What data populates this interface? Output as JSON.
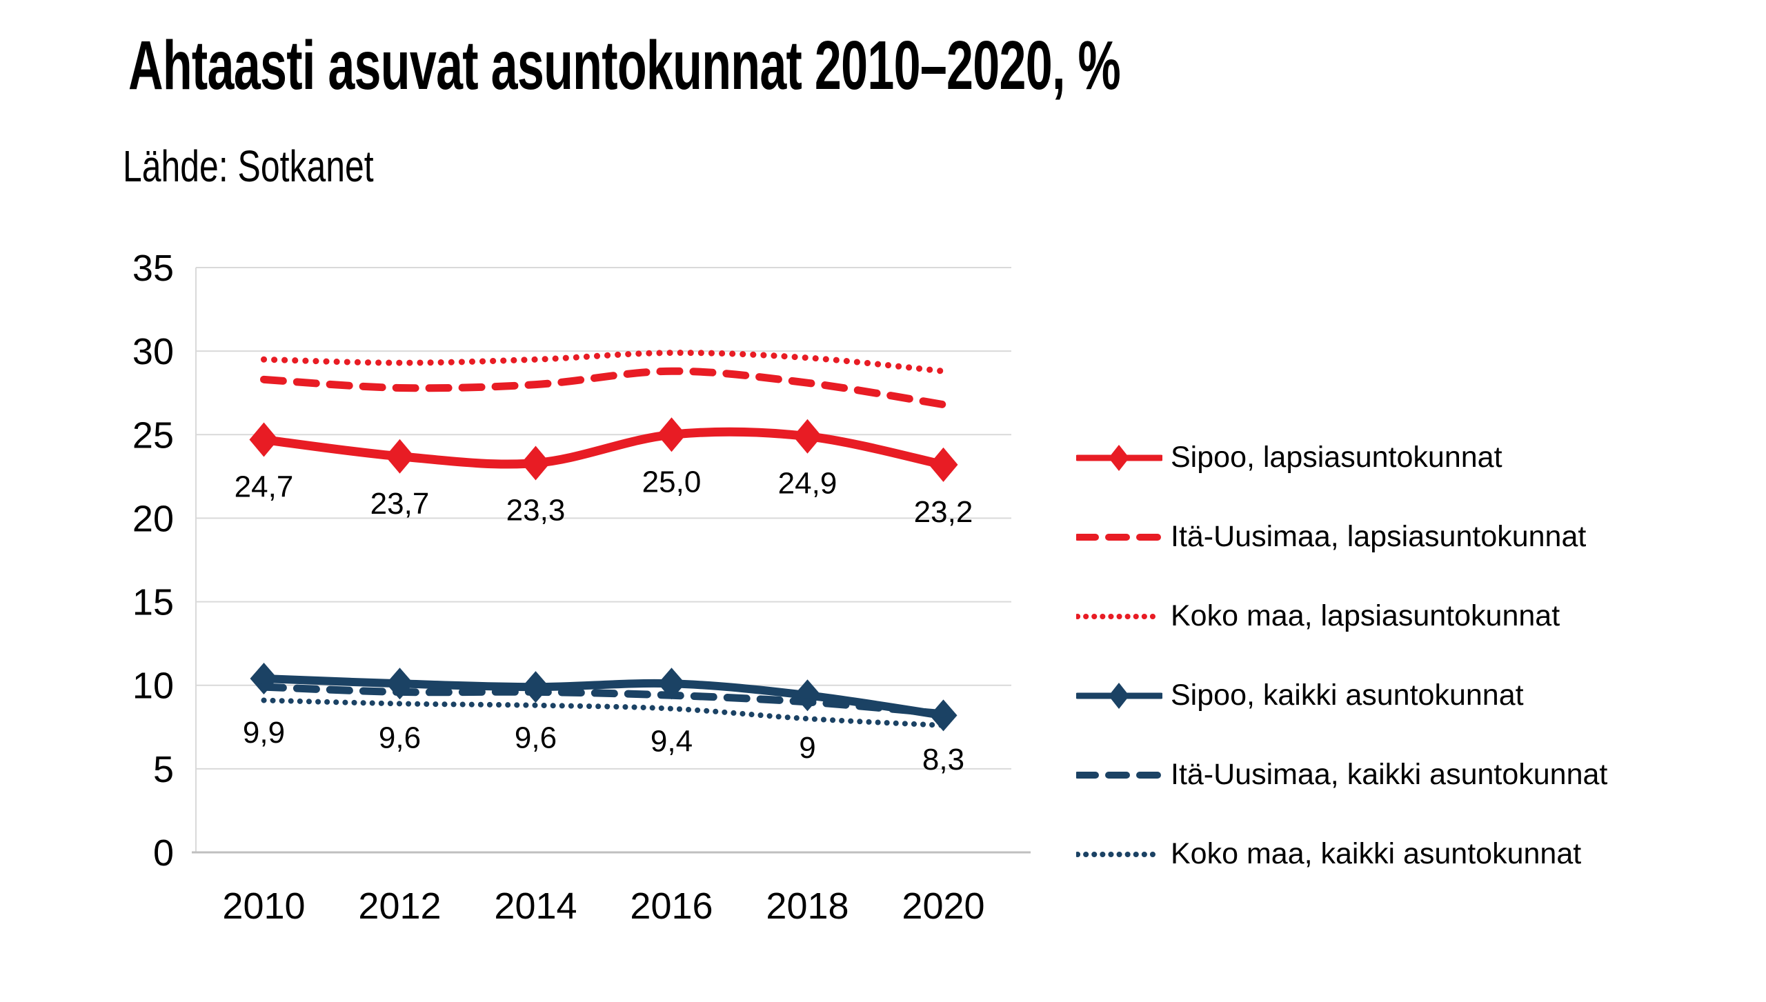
{
  "title": "Ahtaasti asuvat asuntokunnat 2010–2020, %",
  "source": "Lähde: Sotkanet",
  "colors": {
    "red": "#E81C24",
    "blue": "#1B4264",
    "gridline": "#D9D9D9",
    "axis_line": "#BFBFBF",
    "text": "#000000",
    "background": "#FFFFFF"
  },
  "chart_data": {
    "type": "line",
    "title": "Ahtaasti asuvat asuntokunnat 2010–2020, %",
    "subtitle": "Lähde: Sotkanet",
    "categories": [
      2010,
      2012,
      2014,
      2016,
      2018,
      2020
    ],
    "x_tick_labels": [
      "2010",
      "2012",
      "2014",
      "2016",
      "2018",
      "2020"
    ],
    "y_axis": {
      "min": 0,
      "max": 35,
      "step": 5,
      "ticks": [
        0,
        5,
        10,
        15,
        20,
        25,
        30,
        35
      ]
    },
    "grid": true,
    "legend_position": "right",
    "line_smoothing": true,
    "decimal_separator": ",",
    "series": [
      {
        "name": "Sipoo, lapsiasuntokunnat",
        "color_key": "red",
        "style": "solid",
        "marker": "diamond",
        "values": [
          24.7,
          23.7,
          23.3,
          25.0,
          24.9,
          23.2
        ],
        "data_labels": [
          "24,7",
          "23,7",
          "23,3",
          "25,0",
          "24,9",
          "23,2"
        ]
      },
      {
        "name": "Itä-Uusimaa, lapsiasuntokunnat",
        "color_key": "red",
        "style": "dashed",
        "marker": "none",
        "values": [
          28.3,
          27.8,
          28.0,
          28.8,
          28.1,
          26.8
        ],
        "data_labels": null
      },
      {
        "name": "Koko maa, lapsiasuntokunnat",
        "color_key": "red",
        "style": "dotted",
        "marker": "none",
        "values": [
          29.5,
          29.3,
          29.5,
          29.9,
          29.6,
          28.8
        ],
        "data_labels": null
      },
      {
        "name": "Sipoo, kaikki asuntokunnat",
        "color_key": "blue",
        "style": "solid",
        "marker": "diamond",
        "values": [
          10.4,
          10.1,
          9.9,
          10.1,
          9.4,
          8.2
        ],
        "data_labels": null
      },
      {
        "name": "Itä-Uusimaa, kaikki asuntokunnat",
        "color_key": "blue",
        "style": "dashed",
        "marker": "none",
        "values": [
          9.9,
          9.6,
          9.6,
          9.4,
          9.0,
          8.3
        ],
        "data_labels": [
          "9,9",
          "9,6",
          "9,6",
          "9,4",
          "9",
          "8,3"
        ]
      },
      {
        "name": "Koko maa, kaikki asuntokunnat",
        "color_key": "blue",
        "style": "dotted",
        "marker": "none",
        "values": [
          9.1,
          8.9,
          8.8,
          8.6,
          8.0,
          7.6
        ],
        "data_labels": null
      }
    ]
  }
}
